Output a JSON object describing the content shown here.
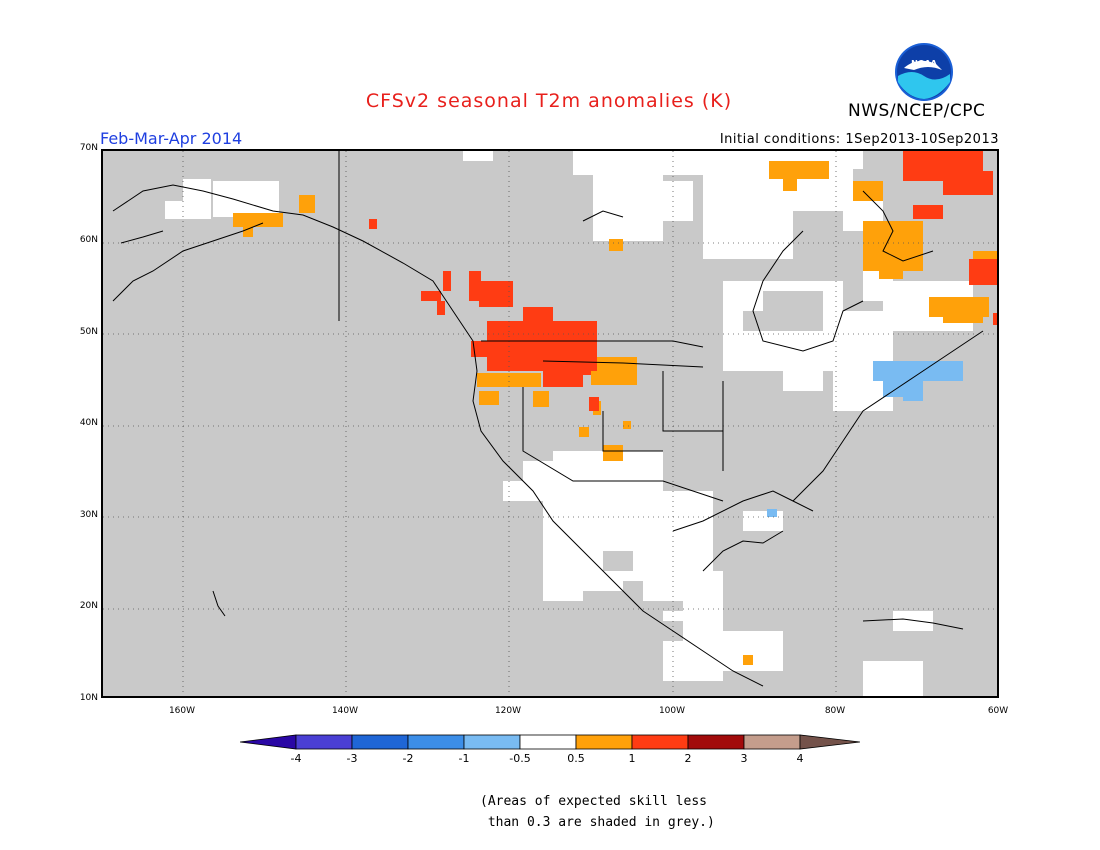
{
  "header": {
    "title": "CFSv2 seasonal T2m anomalies (K)",
    "org": "NWS/NCEP/CPC",
    "period": "Feb-Mar-Apr 2014",
    "initial_conditions": "Initial conditions: 1Sep2013-10Sep2013",
    "logo_text": "NOAA"
  },
  "map": {
    "lat_labels": [
      "70N",
      "60N",
      "50N",
      "40N",
      "30N",
      "20N",
      "10N"
    ],
    "lon_labels": [
      "160W",
      "140W",
      "120W",
      "100W",
      "80W",
      "60W"
    ],
    "extent": {
      "lon_min": -170,
      "lon_max": -60,
      "lat_min": 10,
      "lat_max": 70
    },
    "background_color": "#c9c9c9"
  },
  "colorbar": {
    "labels": [
      "-4",
      "-3",
      "-2",
      "-1",
      "-0.5",
      "0.5",
      "1",
      "2",
      "3",
      "4"
    ],
    "colors": [
      "#2a07a5",
      "#4a3fd4",
      "#1f66d6",
      "#3c8ee8",
      "#79bbf2",
      "#ffffff",
      "#ffa10a",
      "#ff3c13",
      "#a20b0b",
      "#c49d8c",
      "#74524a"
    ]
  },
  "note": {
    "line1": "(Areas of expected skill less",
    "line2": " than 0.3 are shaded in grey.)"
  }
}
